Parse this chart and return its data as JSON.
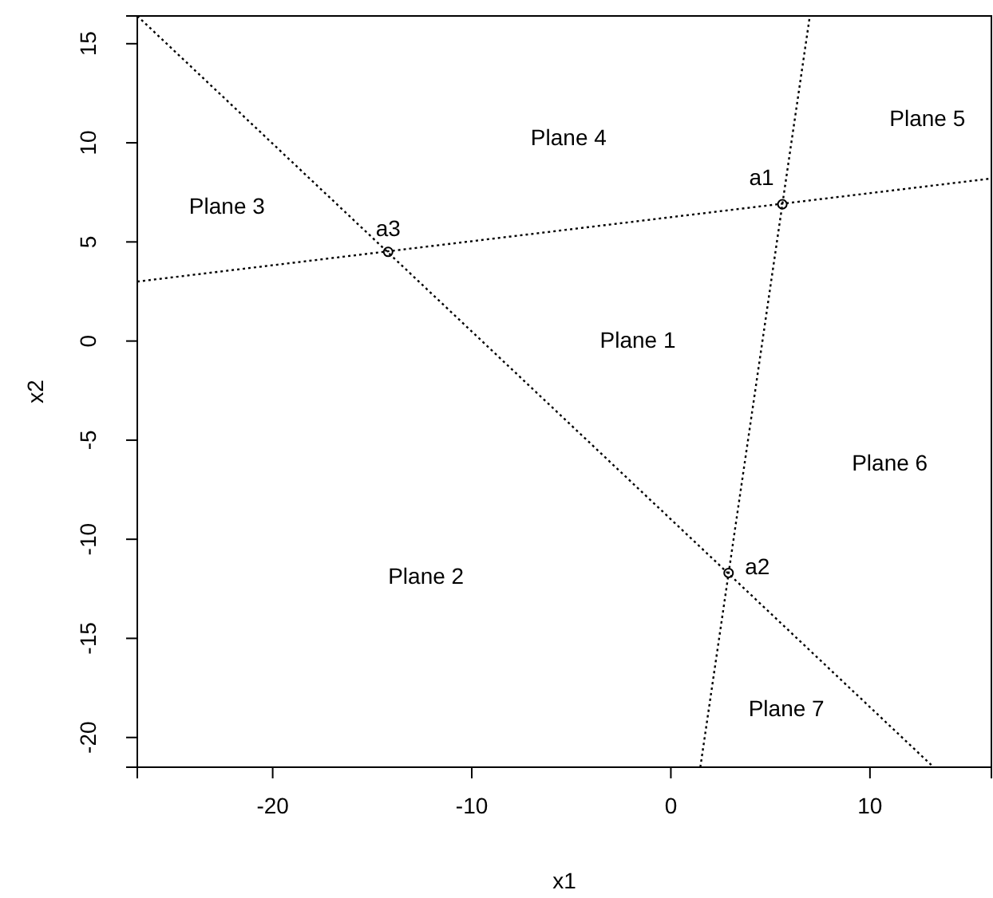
{
  "chart_data": {
    "type": "line",
    "xlabel": "x1",
    "ylabel": "x2",
    "xlim": [
      -26.8,
      16.1
    ],
    "ylim": [
      -21.5,
      16.4
    ],
    "xticks": [
      -20,
      -10,
      0,
      10
    ],
    "yticks": [
      -20,
      -15,
      -10,
      -5,
      0,
      5,
      10,
      15
    ],
    "grid": false,
    "line_style": "dotted",
    "series": [
      {
        "color": "#000000",
        "x": [
          -26.8,
          16.1
        ],
        "values": [
          3.0,
          8.2
        ]
      },
      {
        "color": "#000000",
        "x": [
          -26.8,
          13.2
        ],
        "values": [
          16.4,
          -21.5
        ]
      },
      {
        "color": "#000000",
        "x": [
          1.48,
          6.98
        ],
        "values": [
          -21.5,
          16.4
        ]
      },
      {
        "type": "scatter",
        "color": "#000000",
        "marker": "circle",
        "x": [
          5.6,
          2.9,
          -14.2
        ],
        "values": [
          6.9,
          -11.7,
          4.5
        ]
      }
    ],
    "annotations": [
      {
        "text": "a1",
        "x": 5.6,
        "y": 6.9
      },
      {
        "text": "a2",
        "x": 2.9,
        "y": -11.7
      },
      {
        "text": "a3",
        "x": -14.2,
        "y": 4.5
      },
      "Plane 1",
      "Plane 2",
      "Plane 3",
      "Plane 4",
      "Plane 5",
      "Plane 6",
      "Plane 7"
    ]
  }
}
